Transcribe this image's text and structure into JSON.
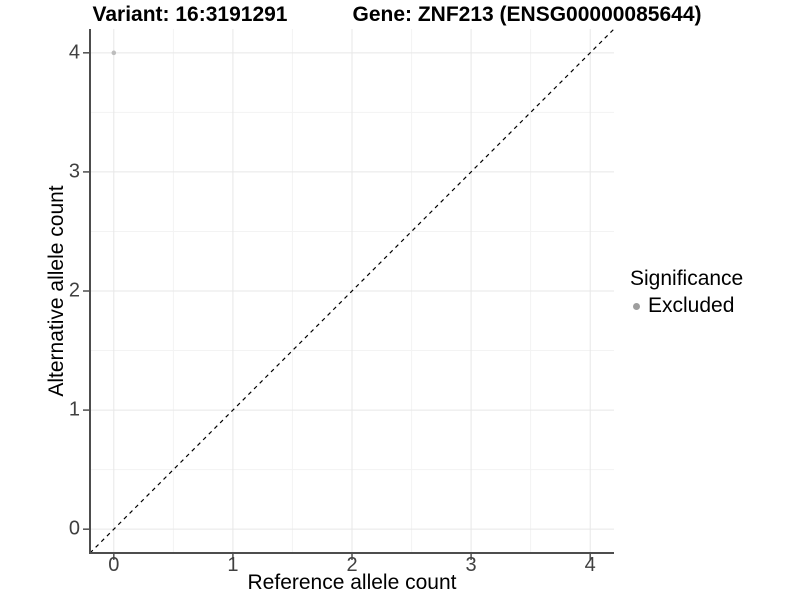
{
  "titles": {
    "variant": "Variant: 16:3191291",
    "gene": "Gene: ZNF213 (ENSG00000085644)"
  },
  "legend": {
    "title": "Significance",
    "items": [
      {
        "label": "Excluded",
        "color": "#9e9e9e"
      }
    ]
  },
  "chart_data": {
    "type": "scatter",
    "title_left": "Variant: 16:3191291",
    "title_right": "Gene: ZNF213 (ENSG00000085644)",
    "xlabel": "Reference allele count",
    "ylabel": "Alternative allele count",
    "xlim": [
      -0.2,
      4.2
    ],
    "ylim": [
      -0.2,
      4.2
    ],
    "xticks": [
      0,
      1,
      2,
      3,
      4
    ],
    "yticks": [
      0,
      1,
      2,
      3,
      4
    ],
    "minor_grid_step": 0.5,
    "grid": "major+minor",
    "legend_position": "right",
    "series": [
      {
        "name": "Excluded",
        "color": "#bdbdbd",
        "points": [
          {
            "x": 0,
            "y": 4
          }
        ]
      }
    ],
    "reference_line": {
      "type": "identity",
      "slope": 1,
      "intercept": 0,
      "style": "dashed",
      "color": "#000000"
    },
    "colors": {
      "grid_major": "#e7e7e7",
      "grid_minor": "#f3f3f3",
      "axis_line": "#4d4d4d",
      "tick_mark": "#4d4d4d",
      "tick_label": "#404040",
      "background": "#ffffff"
    }
  }
}
